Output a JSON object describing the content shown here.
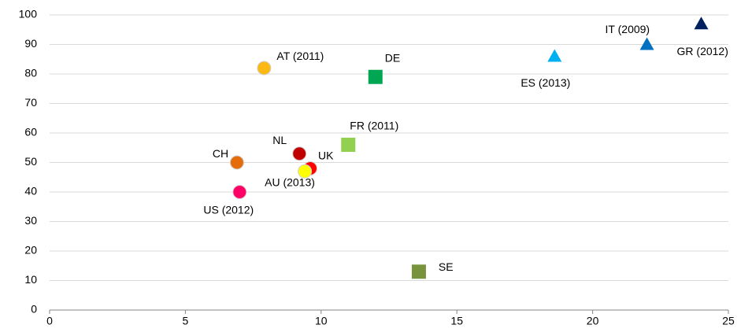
{
  "chart_data": {
    "type": "scatter",
    "xlim": [
      0,
      25
    ],
    "xticks": [
      0,
      5,
      10,
      15,
      20,
      25
    ],
    "ylim": [
      0,
      100
    ],
    "yticks": [
      0,
      10,
      20,
      30,
      40,
      50,
      60,
      70,
      80,
      90,
      100
    ],
    "grid": true,
    "points": [
      {
        "label": "AT (2011)",
        "x": 7.9,
        "y": 82,
        "color": "#fdb913",
        "marker": "circle"
      },
      {
        "label": "DE",
        "x": 12,
        "y": 79,
        "color": "#00a651",
        "marker": "square"
      },
      {
        "label": "ES (2013)",
        "x": 18.6,
        "y": 86,
        "color": "#00b0f0",
        "marker": "triangle"
      },
      {
        "label": "IT (2009)",
        "x": 22,
        "y": 90,
        "color": "#0070c0",
        "marker": "triangle"
      },
      {
        "label": "GR (2012)",
        "x": 24,
        "y": 97,
        "color": "#002060",
        "marker": "triangle"
      },
      {
        "label": "FR (2011)",
        "x": 11,
        "y": 56,
        "color": "#92d050",
        "marker": "square"
      },
      {
        "label": "NL",
        "x": 9.2,
        "y": 53,
        "color": "#c00000",
        "marker": "circle"
      },
      {
        "label": "UK",
        "x": 9.6,
        "y": 48,
        "color": "#ff0000",
        "marker": "circle"
      },
      {
        "label": "AU (2013)",
        "x": 9.4,
        "y": 47,
        "color": "#ffff00",
        "marker": "circle"
      },
      {
        "label": "CH",
        "x": 6.9,
        "y": 50,
        "color": "#e46c0a",
        "marker": "circle"
      },
      {
        "label": "US (2012)",
        "x": 7,
        "y": 40,
        "color": "#ff0066",
        "marker": "circle"
      },
      {
        "label": "SE",
        "x": 13.6,
        "y": 13,
        "color": "#77933c",
        "marker": "square"
      }
    ]
  }
}
